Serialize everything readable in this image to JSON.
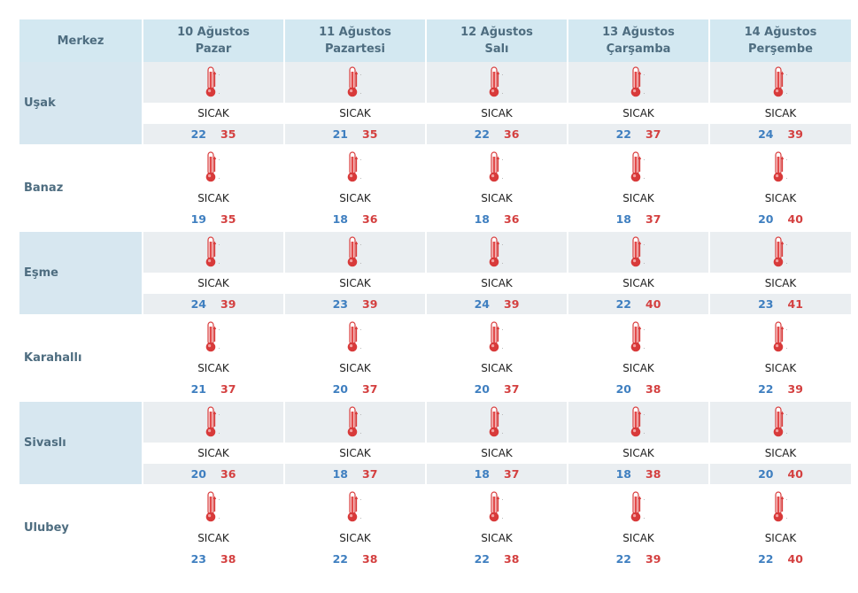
{
  "header": {
    "location_label": "Merkez",
    "days": [
      {
        "date": "10 Ağustos",
        "weekday": "Pazar"
      },
      {
        "date": "11 Ağustos",
        "weekday": "Pazartesi"
      },
      {
        "date": "12 Ağustos",
        "weekday": "Salı"
      },
      {
        "date": "13 Ağustos",
        "weekday": "Çarşamba"
      },
      {
        "date": "14 Ağustos",
        "weekday": "Perşembe"
      }
    ]
  },
  "rows": [
    {
      "city": "Uşak",
      "forecast": [
        {
          "desc": "SICAK",
          "min": "22",
          "max": "35",
          "icon": "hot-thermometer-icon"
        },
        {
          "desc": "SICAK",
          "min": "21",
          "max": "35",
          "icon": "hot-thermometer-icon"
        },
        {
          "desc": "SICAK",
          "min": "22",
          "max": "36",
          "icon": "hot-thermometer-icon"
        },
        {
          "desc": "SICAK",
          "min": "22",
          "max": "37",
          "icon": "hot-thermometer-icon"
        },
        {
          "desc": "SICAK",
          "min": "24",
          "max": "39",
          "icon": "hot-thermometer-icon"
        }
      ]
    },
    {
      "city": "Banaz",
      "forecast": [
        {
          "desc": "SICAK",
          "min": "19",
          "max": "35",
          "icon": "hot-thermometer-icon"
        },
        {
          "desc": "SICAK",
          "min": "18",
          "max": "36",
          "icon": "hot-thermometer-icon"
        },
        {
          "desc": "SICAK",
          "min": "18",
          "max": "36",
          "icon": "hot-thermometer-icon"
        },
        {
          "desc": "SICAK",
          "min": "18",
          "max": "37",
          "icon": "hot-thermometer-icon"
        },
        {
          "desc": "SICAK",
          "min": "20",
          "max": "40",
          "icon": "hot-thermometer-icon"
        }
      ]
    },
    {
      "city": "Eşme",
      "forecast": [
        {
          "desc": "SICAK",
          "min": "24",
          "max": "39",
          "icon": "hot-thermometer-icon"
        },
        {
          "desc": "SICAK",
          "min": "23",
          "max": "39",
          "icon": "hot-thermometer-icon"
        },
        {
          "desc": "SICAK",
          "min": "24",
          "max": "39",
          "icon": "hot-thermometer-icon"
        },
        {
          "desc": "SICAK",
          "min": "22",
          "max": "40",
          "icon": "hot-thermometer-icon"
        },
        {
          "desc": "SICAK",
          "min": "23",
          "max": "41",
          "icon": "hot-thermometer-icon"
        }
      ]
    },
    {
      "city": "Karahallı",
      "forecast": [
        {
          "desc": "SICAK",
          "min": "21",
          "max": "37",
          "icon": "hot-thermometer-icon"
        },
        {
          "desc": "SICAK",
          "min": "20",
          "max": "37",
          "icon": "hot-thermometer-icon"
        },
        {
          "desc": "SICAK",
          "min": "20",
          "max": "37",
          "icon": "hot-thermometer-icon"
        },
        {
          "desc": "SICAK",
          "min": "20",
          "max": "38",
          "icon": "hot-thermometer-icon"
        },
        {
          "desc": "SICAK",
          "min": "22",
          "max": "39",
          "icon": "hot-thermometer-icon"
        }
      ]
    },
    {
      "city": "Sivaslı",
      "forecast": [
        {
          "desc": "SICAK",
          "min": "20",
          "max": "36",
          "icon": "hot-thermometer-icon"
        },
        {
          "desc": "SICAK",
          "min": "18",
          "max": "37",
          "icon": "hot-thermometer-icon"
        },
        {
          "desc": "SICAK",
          "min": "18",
          "max": "37",
          "icon": "hot-thermometer-icon"
        },
        {
          "desc": "SICAK",
          "min": "18",
          "max": "38",
          "icon": "hot-thermometer-icon"
        },
        {
          "desc": "SICAK",
          "min": "20",
          "max": "40",
          "icon": "hot-thermometer-icon"
        }
      ]
    },
    {
      "city": "Ulubey",
      "forecast": [
        {
          "desc": "SICAK",
          "min": "23",
          "max": "38",
          "icon": "hot-thermometer-icon"
        },
        {
          "desc": "SICAK",
          "min": "22",
          "max": "38",
          "icon": "hot-thermometer-icon"
        },
        {
          "desc": "SICAK",
          "min": "22",
          "max": "38",
          "icon": "hot-thermometer-icon"
        },
        {
          "desc": "SICAK",
          "min": "22",
          "max": "39",
          "icon": "hot-thermometer-icon"
        },
        {
          "desc": "SICAK",
          "min": "22",
          "max": "40",
          "icon": "hot-thermometer-icon"
        }
      ]
    }
  ],
  "colors": {
    "header_bg": "#d3e8f1",
    "city_bg": "#d7e7f0",
    "row_band": "#eaeef1",
    "min_temp": "#3f7fc0",
    "max_temp": "#d44040",
    "label_text": "#4e6d80"
  }
}
